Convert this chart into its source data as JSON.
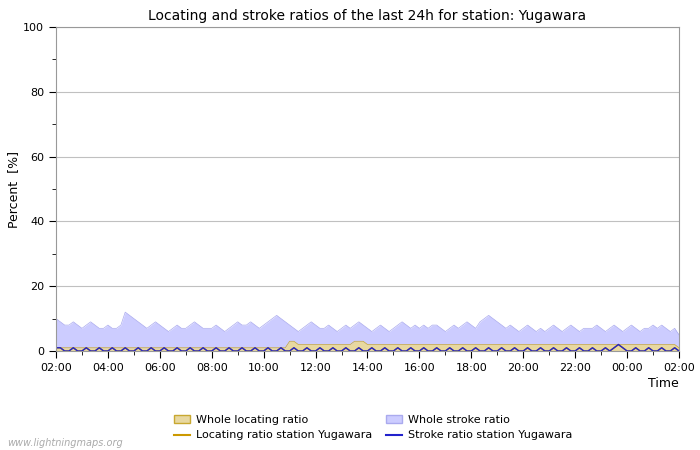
{
  "title": "Locating and stroke ratios of the last 24h for station: Yugawara",
  "xlabel": "Time",
  "ylabel": "Percent  [%]",
  "ylim": [
    0,
    100
  ],
  "yticks": [
    0,
    20,
    40,
    60,
    80,
    100
  ],
  "time_labels": [
    "02:00",
    "04:00",
    "06:00",
    "08:00",
    "10:00",
    "12:00",
    "14:00",
    "16:00",
    "18:00",
    "20:00",
    "22:00",
    "00:00",
    "02:00"
  ],
  "background_color": "#ffffff",
  "plot_bg_color": "#ffffff",
  "grid_color": "#c0c0c0",
  "watermark": "www.lightningmaps.org",
  "whole_locating_fill_color": "#e8d8a0",
  "whole_locating_line_color": "#c8a830",
  "whole_stroke_fill_color": "#ccccff",
  "whole_stroke_line_color": "#aaaaee",
  "locating_station_color": "#cc9900",
  "stroke_station_color": "#2222cc",
  "n_points": 145,
  "whole_stroke_ratio": [
    10,
    9,
    8,
    8,
    9,
    8,
    7,
    8,
    9,
    8,
    7,
    7,
    8,
    7,
    7,
    8,
    12,
    11,
    10,
    9,
    8,
    7,
    8,
    9,
    8,
    7,
    6,
    7,
    8,
    7,
    7,
    8,
    9,
    8,
    7,
    7,
    7,
    8,
    7,
    6,
    7,
    8,
    9,
    8,
    8,
    9,
    8,
    7,
    8,
    9,
    10,
    11,
    10,
    9,
    8,
    7,
    6,
    7,
    8,
    9,
    8,
    7,
    7,
    8,
    7,
    6,
    7,
    8,
    7,
    8,
    9,
    8,
    7,
    6,
    7,
    8,
    7,
    6,
    7,
    8,
    9,
    8,
    7,
    8,
    7,
    8,
    7,
    8,
    8,
    7,
    6,
    7,
    8,
    7,
    8,
    9,
    8,
    7,
    9,
    10,
    11,
    10,
    9,
    8,
    7,
    8,
    7,
    6,
    7,
    8,
    7,
    6,
    7,
    6,
    7,
    8,
    7,
    6,
    7,
    8,
    7,
    6,
    7,
    7,
    7,
    8,
    7,
    6,
    7,
    8,
    7,
    6,
    7,
    8,
    7,
    6,
    7,
    7,
    8,
    7,
    8,
    7,
    6,
    7,
    5
  ],
  "whole_locating_ratio": [
    1,
    1,
    1,
    1,
    1,
    1,
    1,
    1,
    1,
    1,
    1,
    1,
    1,
    1,
    1,
    1,
    1,
    1,
    1,
    1,
    1,
    1,
    1,
    1,
    1,
    1,
    1,
    1,
    1,
    1,
    1,
    1,
    1,
    1,
    1,
    1,
    1,
    1,
    1,
    1,
    1,
    1,
    1,
    1,
    1,
    1,
    1,
    1,
    1,
    1,
    1,
    1,
    1,
    1,
    3,
    3,
    2,
    2,
    2,
    2,
    2,
    2,
    2,
    2,
    2,
    2,
    2,
    2,
    2,
    3,
    3,
    3,
    2,
    2,
    2,
    2,
    2,
    2,
    2,
    2,
    2,
    2,
    2,
    2,
    2,
    2,
    2,
    2,
    2,
    2,
    2,
    2,
    2,
    2,
    2,
    2,
    2,
    2,
    2,
    2,
    2,
    2,
    2,
    2,
    2,
    2,
    2,
    2,
    2,
    2,
    2,
    2,
    2,
    2,
    2,
    2,
    2,
    2,
    2,
    2,
    2,
    2,
    2,
    2,
    2,
    2,
    2,
    2,
    2,
    2,
    2,
    2,
    2,
    2,
    2,
    2,
    2,
    2,
    2,
    2,
    2,
    2,
    2,
    2,
    1
  ],
  "locating_station_ratio": [
    1,
    1,
    0,
    0,
    1,
    0,
    0,
    1,
    0,
    0,
    1,
    0,
    0,
    1,
    0,
    0,
    1,
    0,
    0,
    1,
    0,
    0,
    1,
    0,
    0,
    1,
    0,
    0,
    1,
    0,
    0,
    1,
    0,
    0,
    1,
    0,
    0,
    1,
    0,
    0,
    1,
    0,
    0,
    1,
    0,
    0,
    1,
    0,
    0,
    1,
    0,
    0,
    1,
    0,
    0,
    1,
    0,
    0,
    1,
    0,
    0,
    1,
    0,
    0,
    1,
    0,
    0,
    1,
    0,
    0,
    1,
    0,
    0,
    1,
    0,
    0,
    1,
    0,
    0,
    1,
    0,
    0,
    1,
    0,
    0,
    1,
    0,
    0,
    1,
    0,
    0,
    1,
    0,
    0,
    1,
    0,
    0,
    1,
    0,
    0,
    1,
    0,
    0,
    1,
    0,
    0,
    1,
    0,
    0,
    1,
    0,
    0,
    1,
    0,
    0,
    1,
    0,
    0,
    1,
    0,
    0,
    1,
    0,
    0,
    1,
    0,
    0,
    1,
    0,
    1,
    2,
    1,
    0,
    0,
    1,
    0,
    0,
    1,
    0,
    0,
    1,
    0,
    0,
    1,
    0
  ],
  "stroke_station_ratio": [
    1,
    1,
    0,
    0,
    1,
    0,
    0,
    1,
    0,
    0,
    1,
    0,
    0,
    1,
    0,
    0,
    1,
    0,
    0,
    1,
    0,
    0,
    1,
    0,
    0,
    1,
    0,
    0,
    1,
    0,
    0,
    1,
    0,
    0,
    1,
    0,
    0,
    1,
    0,
    0,
    1,
    0,
    0,
    1,
    0,
    0,
    1,
    0,
    0,
    1,
    0,
    0,
    1,
    0,
    0,
    1,
    0,
    0,
    1,
    0,
    0,
    1,
    0,
    0,
    1,
    0,
    0,
    1,
    0,
    0,
    1,
    0,
    0,
    1,
    0,
    0,
    1,
    0,
    0,
    1,
    0,
    0,
    1,
    0,
    0,
    1,
    0,
    0,
    1,
    0,
    0,
    1,
    0,
    0,
    1,
    0,
    0,
    1,
    0,
    0,
    1,
    0,
    0,
    1,
    0,
    0,
    1,
    0,
    0,
    1,
    0,
    0,
    1,
    0,
    0,
    1,
    0,
    0,
    1,
    0,
    0,
    1,
    0,
    0,
    1,
    0,
    0,
    1,
    0,
    1,
    2,
    1,
    0,
    0,
    1,
    0,
    0,
    1,
    0,
    0,
    1,
    0,
    0,
    1,
    0
  ]
}
